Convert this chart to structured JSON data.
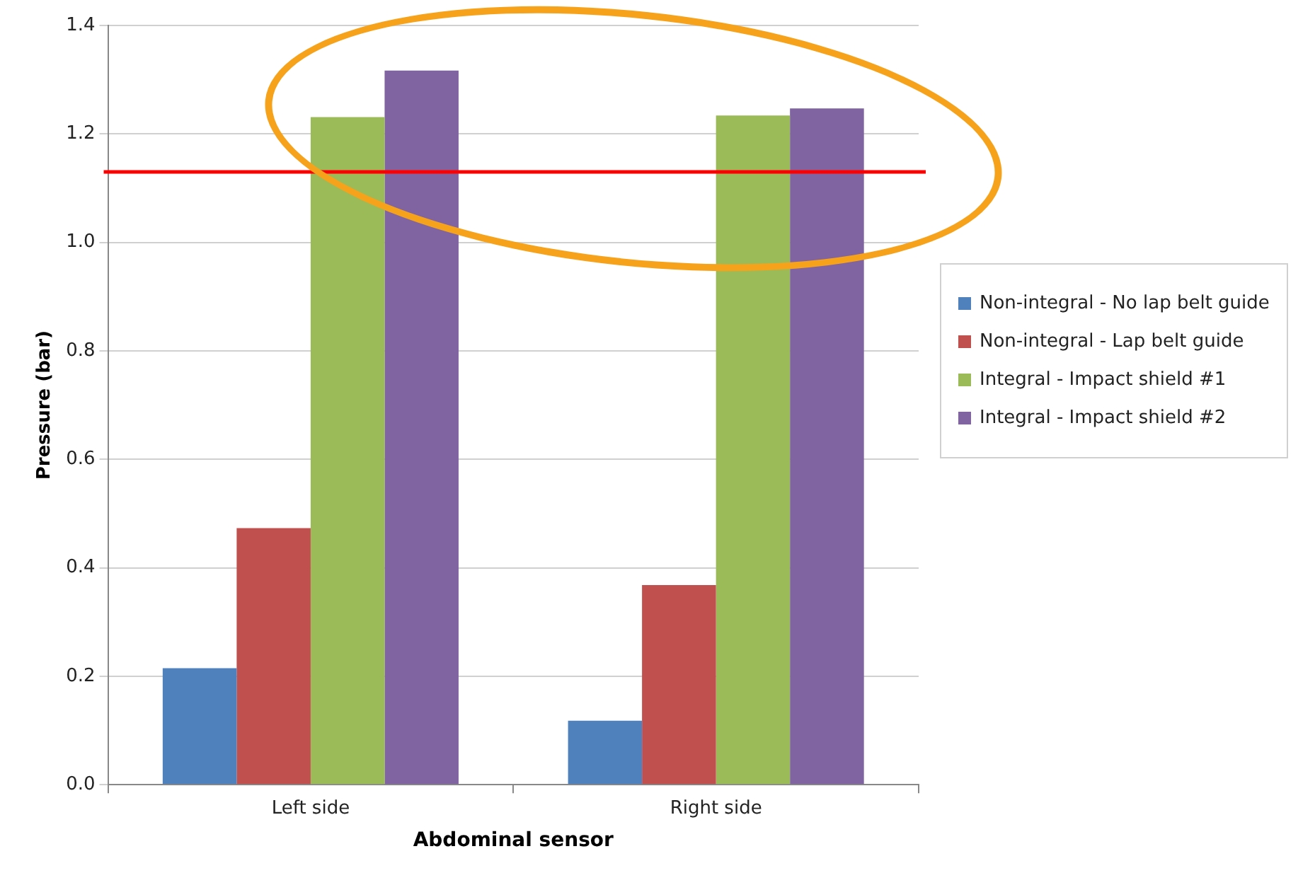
{
  "chart_data": {
    "type": "bar",
    "xlabel": "Abdominal sensor",
    "ylabel": "Pressure (bar)",
    "categories": [
      "Left side",
      "Right side"
    ],
    "series": [
      {
        "name": "Non-integral - No lap belt guide",
        "color": "#4f81bd",
        "values": [
          0.215,
          0.118
        ]
      },
      {
        "name": "Non-integral - Lap belt guide",
        "color": "#c0504d",
        "values": [
          0.473,
          0.368
        ]
      },
      {
        "name": "Integral - Impact shield #1",
        "color": "#9bbb59",
        "values": [
          1.231,
          1.234
        ]
      },
      {
        "name": "Integral - Impact shield #2",
        "color": "#8064a2",
        "values": [
          1.317,
          1.247
        ]
      }
    ],
    "ylim": [
      0,
      1.4
    ],
    "yticks": [
      {
        "value": 0,
        "label": "0.0"
      },
      {
        "value": 0.2,
        "label": "0.2"
      },
      {
        "value": 0.4,
        "label": "0.4"
      },
      {
        "value": 0.6,
        "label": "0.6"
      },
      {
        "value": 0.8,
        "label": "0.8"
      },
      {
        "value": 1,
        "label": "1.0"
      },
      {
        "value": 1.2,
        "label": "1.2"
      },
      {
        "value": 1.4,
        "label": "1.4"
      }
    ],
    "grid": "y",
    "legend": "right",
    "ref_lines": [
      {
        "axis": "y",
        "value": 1.13,
        "color": "#ff0000"
      }
    ]
  }
}
